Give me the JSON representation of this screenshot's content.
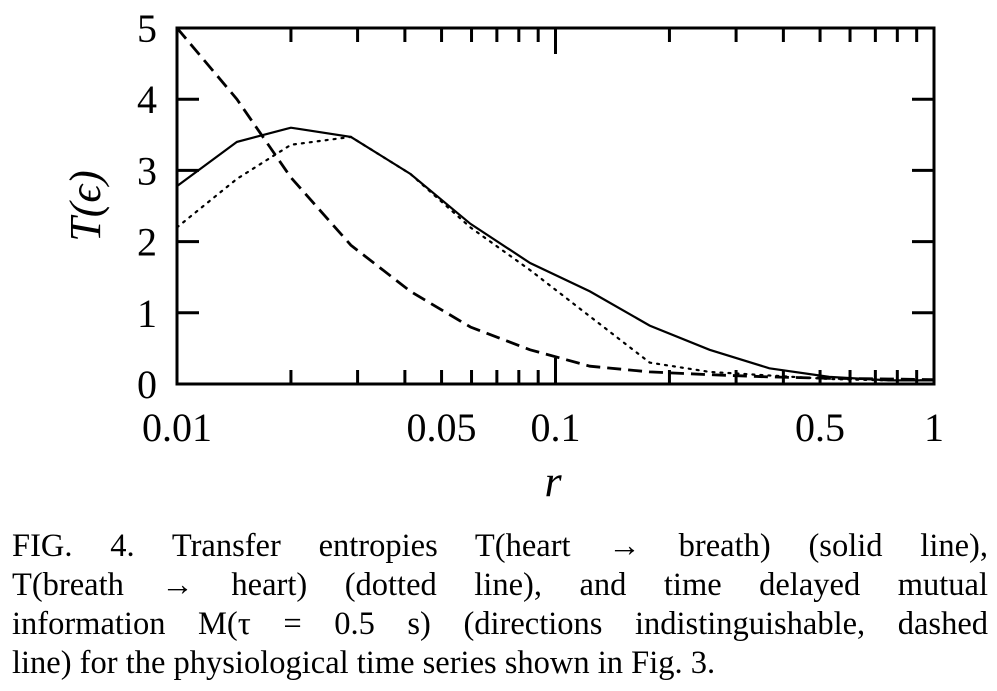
{
  "chart_data": {
    "type": "line",
    "xscale": "log",
    "xlim": [
      0.01,
      1
    ],
    "ylim": [
      0,
      5
    ],
    "xticks": [
      0.01,
      0.05,
      0.1,
      0.5,
      1
    ],
    "xtick_labels": [
      "0.01",
      "0.05",
      "0.1",
      "0.5",
      "1"
    ],
    "yticks": [
      0,
      1,
      2,
      3,
      4,
      5
    ],
    "ytick_labels": [
      "0",
      "1",
      "2",
      "3",
      "4",
      "5"
    ],
    "xlabel": "r",
    "ylabel": "T(ϵ)",
    "grid": false,
    "series": [
      {
        "style": "solid",
        "x": [
          0.01,
          0.0144,
          0.02,
          0.0288,
          0.0414,
          0.0596,
          0.0857,
          0.1233,
          0.1774,
          0.2553,
          0.3674,
          0.5285,
          0.7604,
          1.0
        ],
        "y": [
          2.78,
          3.4,
          3.6,
          3.47,
          2.95,
          2.25,
          1.7,
          1.3,
          0.82,
          0.48,
          0.22,
          0.1,
          0.05,
          0.05
        ]
      },
      {
        "style": "dotted",
        "x": [
          0.01,
          0.0144,
          0.02,
          0.0288,
          0.0414,
          0.0596,
          0.0857,
          0.1233,
          0.1774,
          0.2553,
          0.3674,
          0.5285,
          0.7604,
          1.0
        ],
        "y": [
          2.2,
          2.88,
          3.36,
          3.47,
          2.95,
          2.2,
          1.6,
          0.95,
          0.3,
          0.17,
          0.12,
          0.07,
          0.05,
          0.05
        ]
      },
      {
        "style": "dashed",
        "x": [
          0.01,
          0.0144,
          0.02,
          0.0288,
          0.0414,
          0.0596,
          0.0857,
          0.1233,
          0.1774,
          0.2553,
          0.3674,
          0.5285,
          0.7604,
          1.0
        ],
        "y": [
          5.0,
          4.0,
          2.9,
          1.95,
          1.3,
          0.8,
          0.48,
          0.25,
          0.17,
          0.13,
          0.1,
          0.08,
          0.07,
          0.06
        ]
      }
    ]
  },
  "caption": {
    "lines": [
      "FIG. 4.   Transfer entropies T(heart → breath) (solid line),",
      "T(breath → heart) (dotted line), and time delayed mutual",
      "information M(τ = 0.5 s) (directions indistinguishable, dashed",
      "line) for the physiological time series shown in Fig. 3."
    ]
  }
}
